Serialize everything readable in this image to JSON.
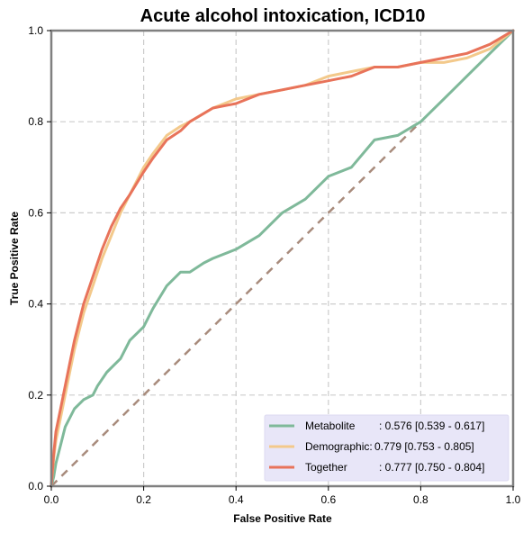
{
  "chart_data": {
    "type": "line",
    "title": "Acute alcohol intoxication, ICD10",
    "xlabel": "False Positive Rate",
    "ylabel": "True Positive Rate",
    "xlim": [
      0,
      1
    ],
    "ylim": [
      0,
      1
    ],
    "xticks": [
      "0.0",
      "0.2",
      "0.4",
      "0.6",
      "0.8",
      "1.0"
    ],
    "yticks": [
      "0.0",
      "0.2",
      "0.4",
      "0.6",
      "0.8",
      "1.0"
    ],
    "grid": true,
    "legend_position": "bottom-right",
    "series": [
      {
        "name": "Metabolite",
        "label_suffix": ": 0.576 [0.539 - 0.617]",
        "color": "#7fb99a",
        "x": [
          0,
          0.005,
          0.01,
          0.02,
          0.03,
          0.05,
          0.07,
          0.09,
          0.1,
          0.12,
          0.15,
          0.17,
          0.2,
          0.22,
          0.25,
          0.28,
          0.3,
          0.33,
          0.35,
          0.4,
          0.45,
          0.5,
          0.55,
          0.6,
          0.65,
          0.7,
          0.75,
          0.8,
          0.85,
          0.9,
          0.95,
          1.0
        ],
        "y": [
          0,
          0.02,
          0.05,
          0.09,
          0.13,
          0.17,
          0.19,
          0.2,
          0.22,
          0.25,
          0.28,
          0.32,
          0.35,
          0.39,
          0.44,
          0.47,
          0.47,
          0.49,
          0.5,
          0.52,
          0.55,
          0.6,
          0.63,
          0.68,
          0.7,
          0.76,
          0.77,
          0.8,
          0.85,
          0.9,
          0.95,
          1.0
        ]
      },
      {
        "name": "Demographic:",
        "label_suffix": " 0.779 [0.753 - 0.805]",
        "color": "#f3c98b",
        "x": [
          0,
          0.005,
          0.01,
          0.02,
          0.03,
          0.04,
          0.05,
          0.07,
          0.09,
          0.11,
          0.13,
          0.15,
          0.17,
          0.2,
          0.22,
          0.25,
          0.28,
          0.3,
          0.35,
          0.4,
          0.45,
          0.5,
          0.55,
          0.6,
          0.65,
          0.7,
          0.75,
          0.8,
          0.85,
          0.9,
          0.95,
          1.0
        ],
        "y": [
          0,
          0.06,
          0.1,
          0.15,
          0.2,
          0.25,
          0.3,
          0.38,
          0.44,
          0.5,
          0.55,
          0.6,
          0.64,
          0.7,
          0.73,
          0.77,
          0.79,
          0.8,
          0.83,
          0.85,
          0.86,
          0.87,
          0.88,
          0.9,
          0.91,
          0.92,
          0.92,
          0.93,
          0.93,
          0.94,
          0.96,
          1.0
        ]
      },
      {
        "name": "Together",
        "label_suffix": ": 0.777 [0.750 - 0.804]",
        "color": "#e8735a",
        "x": [
          0,
          0.005,
          0.01,
          0.02,
          0.03,
          0.04,
          0.05,
          0.07,
          0.09,
          0.11,
          0.13,
          0.15,
          0.17,
          0.2,
          0.22,
          0.25,
          0.28,
          0.3,
          0.35,
          0.4,
          0.45,
          0.5,
          0.55,
          0.6,
          0.65,
          0.7,
          0.75,
          0.8,
          0.85,
          0.9,
          0.95,
          1.0
        ],
        "y": [
          0,
          0.07,
          0.12,
          0.17,
          0.22,
          0.27,
          0.32,
          0.4,
          0.46,
          0.52,
          0.57,
          0.61,
          0.64,
          0.69,
          0.72,
          0.76,
          0.78,
          0.8,
          0.83,
          0.84,
          0.86,
          0.87,
          0.88,
          0.89,
          0.9,
          0.92,
          0.92,
          0.93,
          0.94,
          0.95,
          0.97,
          1.0
        ]
      },
      {
        "name": "",
        "color": "#a88b7c",
        "dashed": true,
        "x": [
          0,
          1
        ],
        "y": [
          0,
          1
        ]
      }
    ],
    "legend_background": "#e8e6f8"
  }
}
